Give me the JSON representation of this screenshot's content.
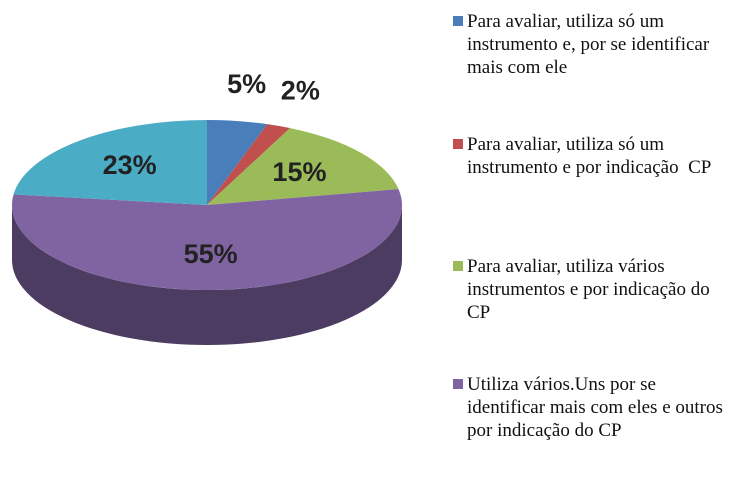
{
  "chart_data": {
    "type": "pie",
    "categories": [
      "Para avaliar, utiliza só um instrumento e, por se identificar mais com ele",
      "Para avaliar, utiliza só um instrumento e por indicação  CP",
      "Para avaliar, utiliza vários instrumentos e por indicação do CP",
      "Utiliza vários.Uns por se identificar mais com eles e outros por indicação do CP",
      null
    ],
    "values": [
      5,
      2,
      15,
      55,
      23
    ],
    "value_labels": [
      "5%",
      "2%",
      "15%",
      "55%",
      "23%"
    ],
    "colors": [
      "#4a7ebb",
      "#c0504d",
      "#9bbb59",
      "#8064a2",
      "#4bacc6"
    ]
  }
}
